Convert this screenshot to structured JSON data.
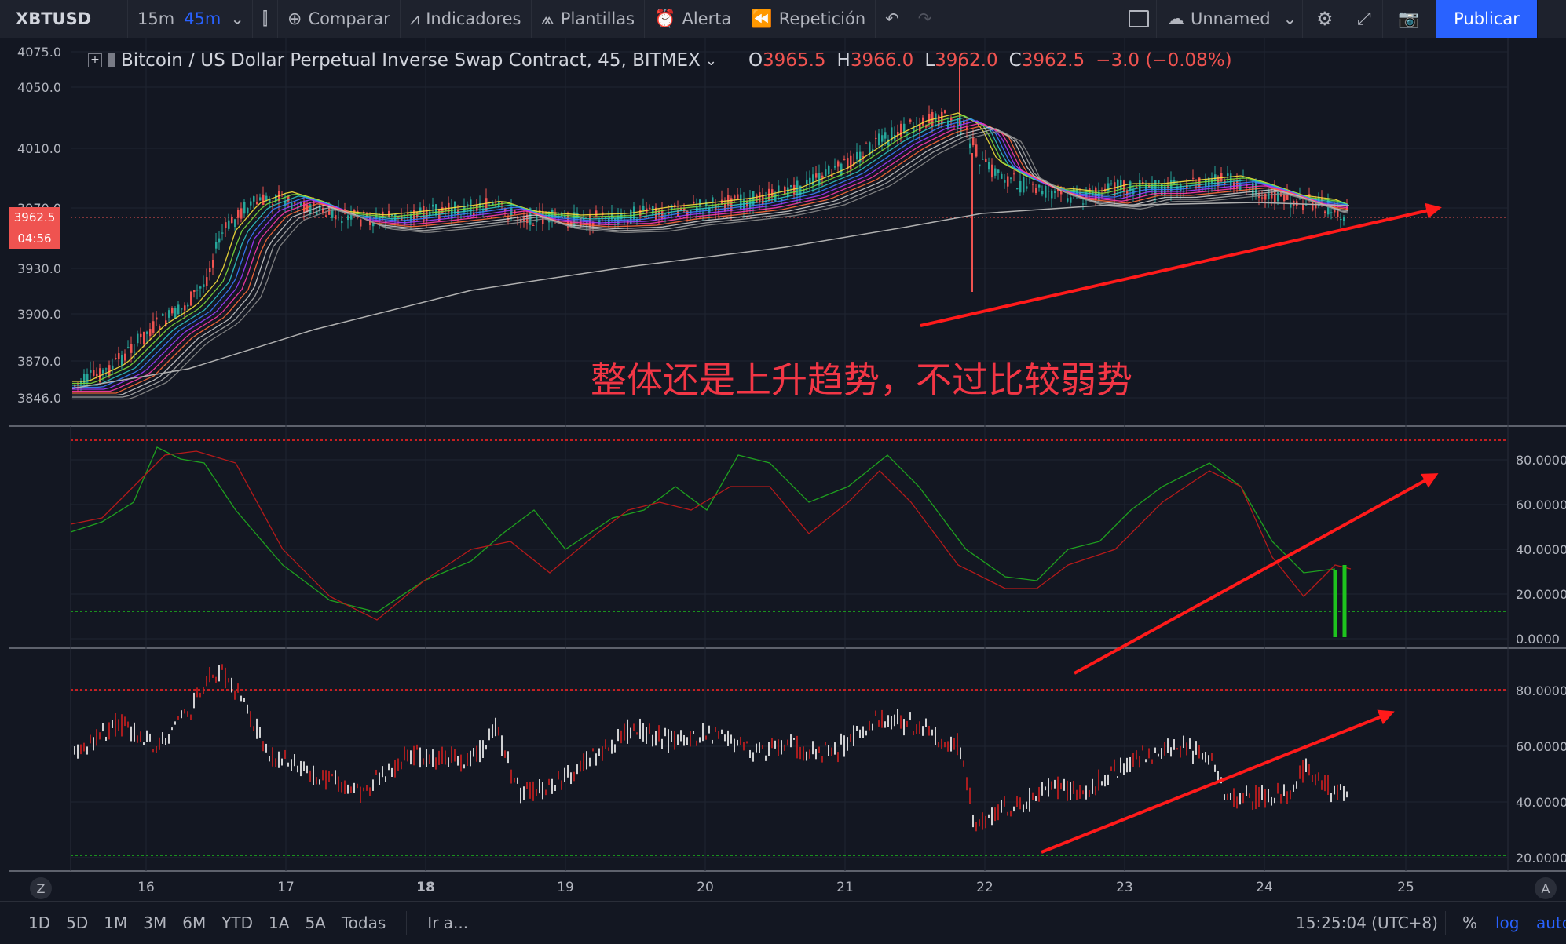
{
  "toolbar": {
    "symbol": "XBTUSD",
    "interval_1": "15m",
    "interval_2": "45m",
    "compare": "Comparar",
    "indicators": "Indicadores",
    "templates": "Plantillas",
    "alert": "Alerta",
    "replay": "Repetición",
    "layout_name": "Unnamed",
    "publish": "Publicar"
  },
  "legend": {
    "title": "Bitcoin / US Dollar Perpetual Inverse Swap Contract, 45, BITMEX",
    "o_label": "O",
    "o_value": "3965.5",
    "h_label": "H",
    "h_value": "3966.0",
    "l_label": "L",
    "l_value": "3962.0",
    "c_label": "C",
    "c_value": "3962.5",
    "change": "−3.0 (−0.08%)"
  },
  "price_tag": {
    "price": "3962.5",
    "countdown": "04:56"
  },
  "annotation": "整体还是上升趋势，不过比较弱势",
  "price_axis": [
    "4075.0",
    "4050.0",
    "4010.0",
    "3970.0",
    "3930.0",
    "3900.0",
    "3870.0",
    "3846.0"
  ],
  "osc_axis": [
    "80.0000",
    "60.0000",
    "40.0000",
    "20.0000",
    "0.0000"
  ],
  "rsi_axis": [
    "80.0000",
    "60.0000",
    "40.0000",
    "20.0000"
  ],
  "time_axis": [
    "16",
    "17",
    "18",
    "19",
    "20",
    "21",
    "22",
    "23",
    "24",
    "25"
  ],
  "bottombar": {
    "ranges": [
      "1D",
      "5D",
      "1M",
      "3M",
      "6M",
      "YTD",
      "1A",
      "5A",
      "Todas"
    ],
    "goto": "Ir a...",
    "clock": "15:25:04 (UTC+8)",
    "percent": "%",
    "log": "log",
    "auto": "auto"
  },
  "chart_data": {
    "type": "line",
    "series": [],
    "colors": {
      "up": "#26a69a",
      "down": "#ef5350",
      "arrow": "#ff1a1a",
      "background": "#131722"
    }
  }
}
